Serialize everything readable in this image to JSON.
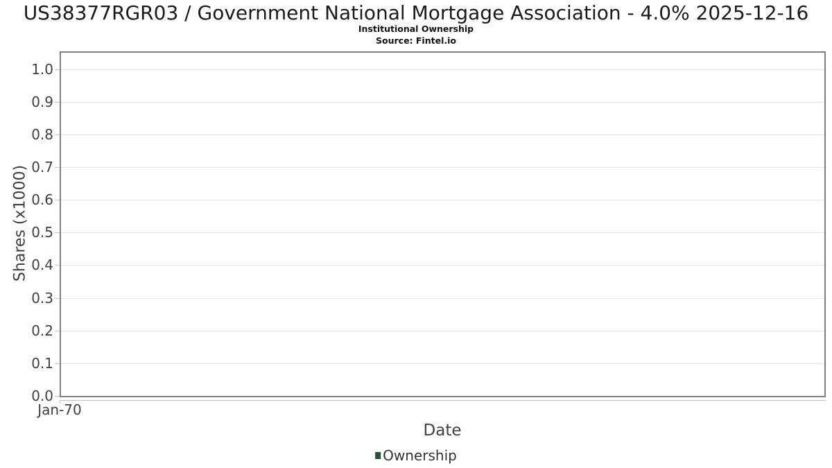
{
  "chart_data": {
    "type": "bar",
    "title": "US38377RGR03 / Government National Mortgage Association - 4.0% 2025-12-16",
    "subtitle": "Institutional Ownership",
    "source": "Source: Fintel.io",
    "xlabel": "Date",
    "ylabel": "Shares (x1000)",
    "x_tick_labels": [
      "Jan-70"
    ],
    "y_ticks": [
      0.0,
      0.1,
      0.2,
      0.3,
      0.4,
      0.5,
      0.6,
      0.7,
      0.8,
      0.9,
      1.0
    ],
    "y_tick_labels": [
      "0.0",
      "0.1",
      "0.2",
      "0.3",
      "0.4",
      "0.5",
      "0.6",
      "0.7",
      "0.8",
      "0.9",
      "1.0"
    ],
    "ylim": [
      0,
      1.05
    ],
    "grid": true,
    "legend_position": "bottom",
    "series": [
      {
        "name": "Ownership",
        "color": "#1e5631",
        "x": [],
        "values": []
      }
    ]
  },
  "colors": {
    "plot_border": "#808080",
    "gridline": "#e6e6e6",
    "tick": "#c4c4c4",
    "axis_text": "#404040",
    "title_text": "#1a1a1a",
    "series_green": "#1e5631"
  }
}
